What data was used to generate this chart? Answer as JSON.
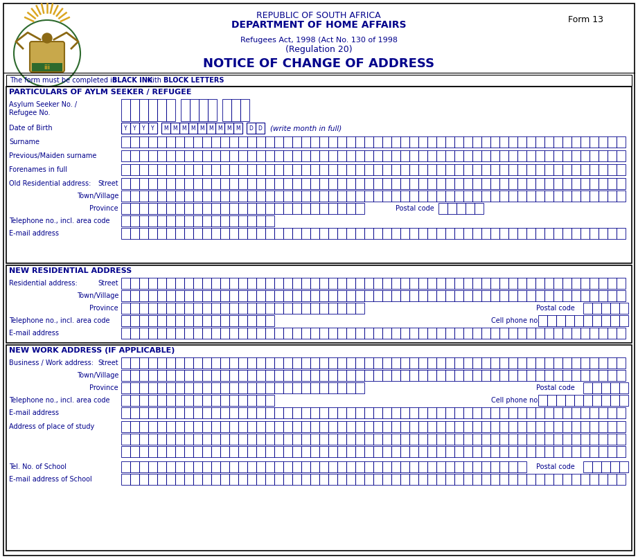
{
  "title_line1": "REPUBLIC OF SOUTH AFRICA",
  "title_line2": "DEPARTMENT OF HOME AFFAIRS",
  "form_number": "Form 13",
  "subtitle_line1": "Refugees Act, 1998 (Act No. 130 of 1998",
  "subtitle_line2": "(Regulation 20)",
  "main_title": "NOTICE OF CHANGE OF ADDRESS",
  "section1_title": "PARTICULARS OF AYLM SEEKER / REFUGEE",
  "section2_title": "NEW RESIDENTIAL ADDRESS",
  "section3_title": "NEW WORK ADDRESS (IF APPLICABLE)",
  "bg_color": "#ffffff",
  "navy": "#00008B",
  "black": "#000000",
  "fig_width": 9.21,
  "fig_height": 8.07,
  "dpi": 100
}
